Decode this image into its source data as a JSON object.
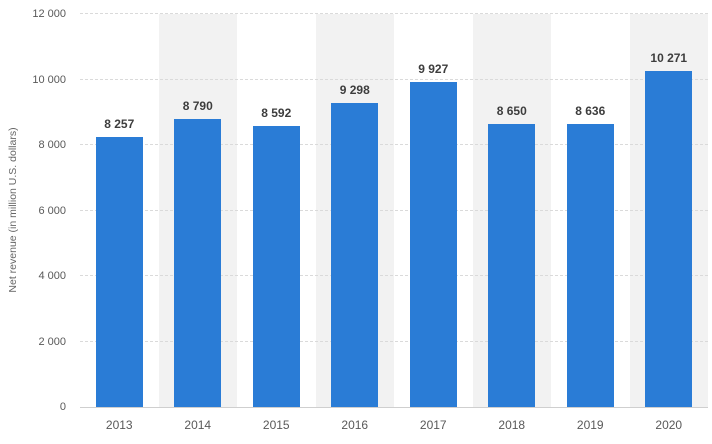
{
  "chart_data": {
    "type": "bar",
    "title": "",
    "xlabel": "",
    "ylabel": "Net revenue (in million U.S. dollars)",
    "categories": [
      "2013",
      "2014",
      "2015",
      "2016",
      "2017",
      "2018",
      "2019",
      "2020"
    ],
    "values": [
      8257,
      8790,
      8592,
      9298,
      9927,
      8650,
      8636,
      10271
    ],
    "value_labels": [
      "8 257",
      "8 790",
      "8 592",
      "9 298",
      "9 927",
      "8 650",
      "8 636",
      "10 271"
    ],
    "ylim": [
      0,
      12000
    ],
    "yticks": [
      0,
      2000,
      4000,
      6000,
      8000,
      10000,
      12000
    ],
    "ytick_labels": [
      "0",
      "2 000",
      "4 000",
      "6 000",
      "8 000",
      "10 000",
      "12 000"
    ],
    "grid": "horizontal-dashed",
    "legend": "none",
    "colors": {
      "bar": "#2a7cd6",
      "band": "#f2f2f2",
      "gridline": "#dadada",
      "axis_line": "#cfcfcf",
      "value_label": "#3d3d3d",
      "tick_label": "#595959",
      "axis_title": "#666666"
    }
  }
}
